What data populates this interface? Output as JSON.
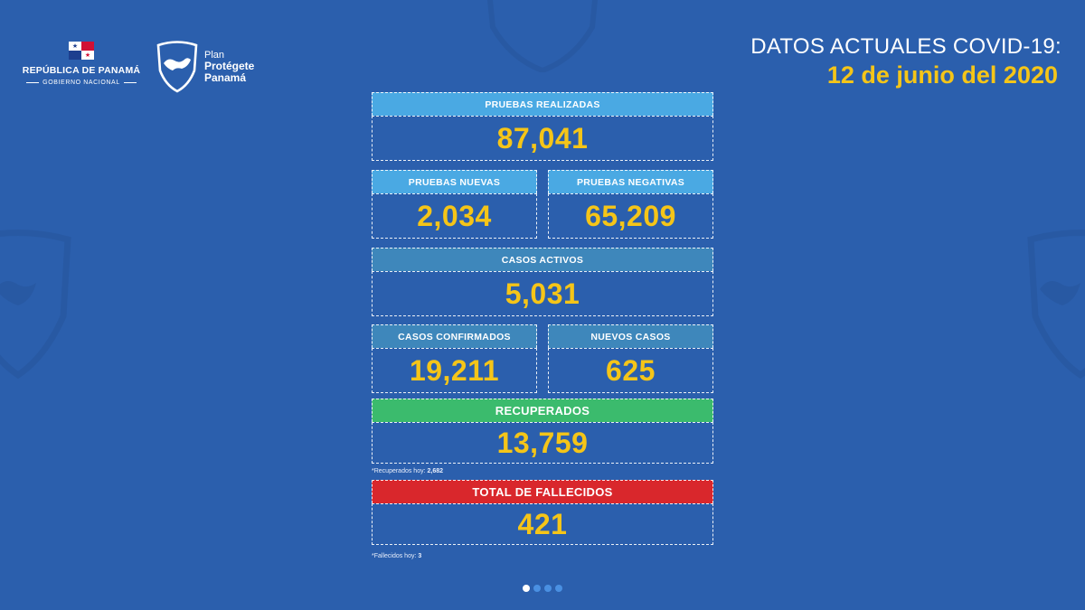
{
  "header": {
    "government_title": "REPÚBLICA DE PANAMÁ",
    "government_subtitle": "GOBIERNO NACIONAL",
    "plan_line1": "Plan",
    "plan_line2": "Protégete",
    "plan_line3": "Panamá",
    "title": "DATOS ACTUALES COVID-19:",
    "date": "12 de junio del 2020"
  },
  "stats": {
    "pruebas_realizadas": {
      "label": "PRUEBAS REALIZADAS",
      "value": "87,041"
    },
    "pruebas_nuevas": {
      "label": "PRUEBAS NUEVAS",
      "value": "2,034"
    },
    "pruebas_negativas": {
      "label": "PRUEBAS NEGATIVAS",
      "value": "65,209"
    },
    "casos_activos": {
      "label": "CASOS ACTIVOS",
      "value": "5,031"
    },
    "casos_confirmados": {
      "label": "CASOS CONFIRMADOS",
      "value": "19,211"
    },
    "nuevos_casos": {
      "label": "NUEVOS CASOS",
      "value": "625"
    },
    "recuperados": {
      "label": "RECUPERADOS",
      "value": "13,759"
    },
    "fallecidos": {
      "label": "TOTAL DE FALLECIDOS",
      "value": "421"
    }
  },
  "notes": {
    "recuperados_label": "*Recuperados hoy:",
    "recuperados_value": "2,682",
    "fallecidos_label": "*Fallecidos hoy:",
    "fallecidos_value": "3"
  },
  "pagination": {
    "total": 4,
    "active": 1
  },
  "colors": {
    "background": "#2b5fad",
    "value_yellow": "#f5c518",
    "header_light_blue": "#4aa9e3",
    "header_mid_blue": "#3e87bb",
    "header_green": "#3bbb6d",
    "header_red": "#d9272c"
  },
  "icons": [
    "panama-flag-icon",
    "shield-map-icon"
  ]
}
